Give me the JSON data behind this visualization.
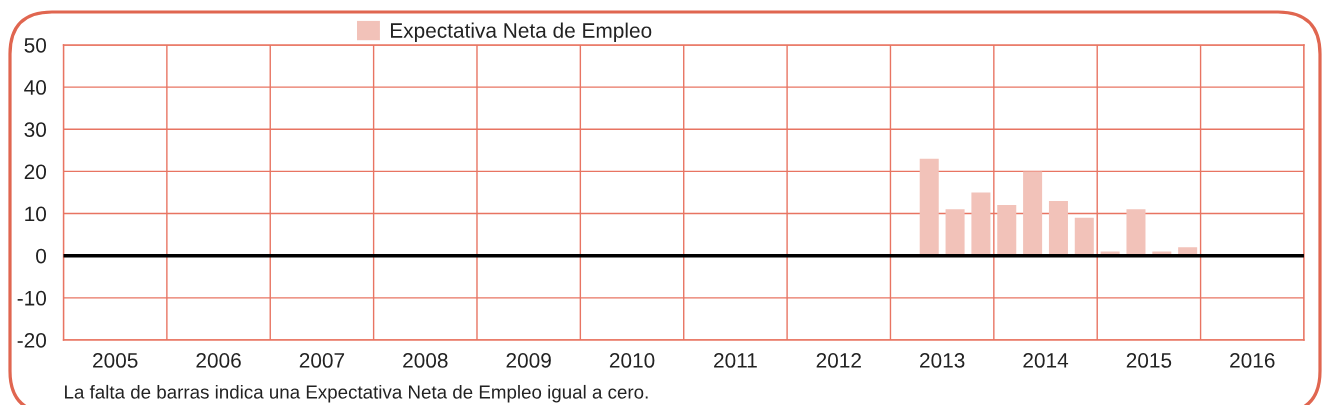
{
  "chart_data": {
    "type": "bar",
    "x": [
      2013.375,
      2013.625,
      2013.875,
      2014.125,
      2014.375,
      2014.625,
      2014.875,
      2015.125,
      2015.375,
      2015.625,
      2015.875
    ],
    "series": [
      {
        "name": "Expectativa Neta de Empleo",
        "color": "#f2c2b9",
        "values": [
          23,
          11,
          15,
          12,
          20,
          13,
          9,
          1,
          11,
          1,
          2
        ]
      }
    ],
    "xlim": [
      2005,
      2017
    ],
    "xticks": [
      {
        "value": 2005,
        "label": null
      },
      {
        "value": 2005.5,
        "label": "2005"
      },
      {
        "value": 2006,
        "label": null
      },
      {
        "value": 2006.5,
        "label": "2006"
      },
      {
        "value": 2007,
        "label": null
      },
      {
        "value": 2007.5,
        "label": "2007"
      },
      {
        "value": 2008,
        "label": null
      },
      {
        "value": 2008.5,
        "label": "2008"
      },
      {
        "value": 2009,
        "label": null
      },
      {
        "value": 2009.5,
        "label": "2009"
      },
      {
        "value": 2010,
        "label": null
      },
      {
        "value": 2010.5,
        "label": "2010"
      },
      {
        "value": 2011,
        "label": null
      },
      {
        "value": 2011.5,
        "label": "2011"
      },
      {
        "value": 2012,
        "label": null
      },
      {
        "value": 2012.5,
        "label": "2012"
      },
      {
        "value": 2013,
        "label": null
      },
      {
        "value": 2013.5,
        "label": "2013"
      },
      {
        "value": 2014,
        "label": null
      },
      {
        "value": 2014.5,
        "label": "2014"
      },
      {
        "value": 2015,
        "label": null
      },
      {
        "value": 2015.5,
        "label": "2015"
      },
      {
        "value": 2016,
        "label": null
      },
      {
        "value": 2016.5,
        "label": "2016"
      },
      {
        "value": 2017,
        "label": null
      }
    ],
    "ylim": [
      -20,
      50
    ],
    "yticks": [
      -20,
      -10,
      0,
      10,
      20,
      30,
      40,
      50
    ],
    "grid": true,
    "legend": "top",
    "ref_lines": [
      {
        "axis": "y",
        "value": 0,
        "color": "#000000"
      }
    ],
    "annotations": [
      "La falta de barras indica una Expectativa Neta de Empleo igual a cero."
    ]
  }
}
